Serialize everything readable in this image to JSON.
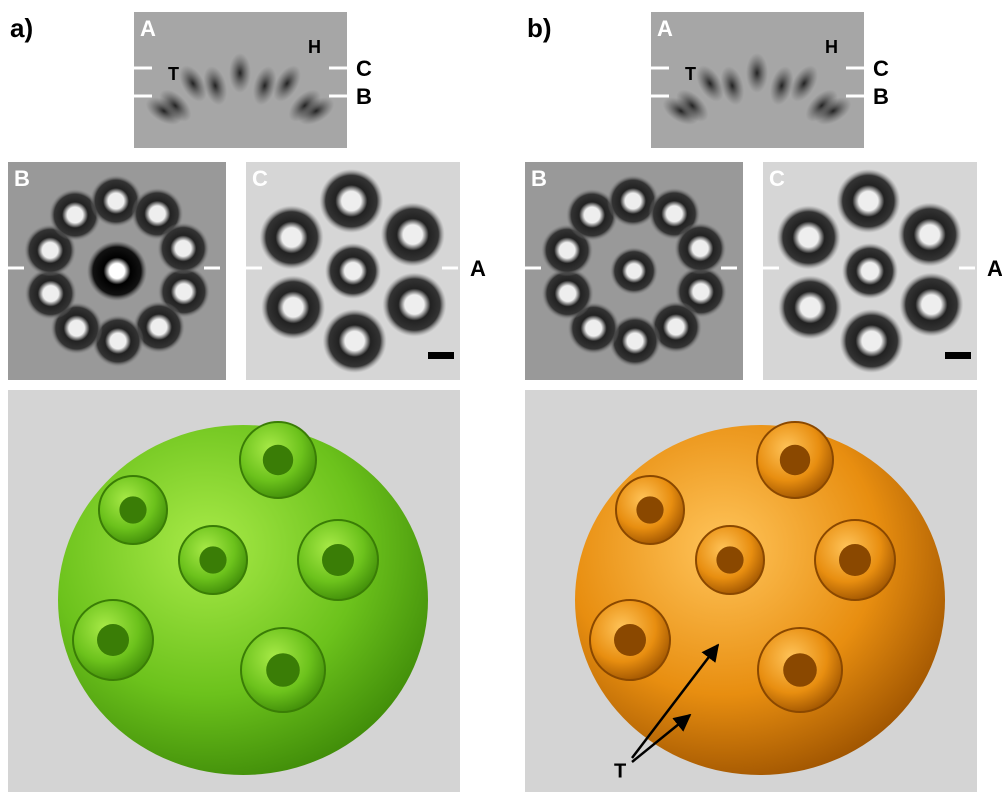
{
  "panels": [
    {
      "label": "a)",
      "top": {
        "label": "A",
        "markers": [
          "T",
          "H"
        ],
        "side_labels": [
          "C",
          "B"
        ]
      },
      "middle": [
        {
          "label": "B"
        },
        {
          "label": "C",
          "side_label": "A"
        }
      ]
    },
    {
      "label": "b)",
      "top": {
        "label": "A",
        "markers": [
          "T",
          "H"
        ],
        "side_labels": [
          "C",
          "B"
        ]
      },
      "middle": [
        {
          "label": "B"
        },
        {
          "label": "C",
          "side_label": "A"
        }
      ],
      "arrow_label": "T"
    }
  ]
}
